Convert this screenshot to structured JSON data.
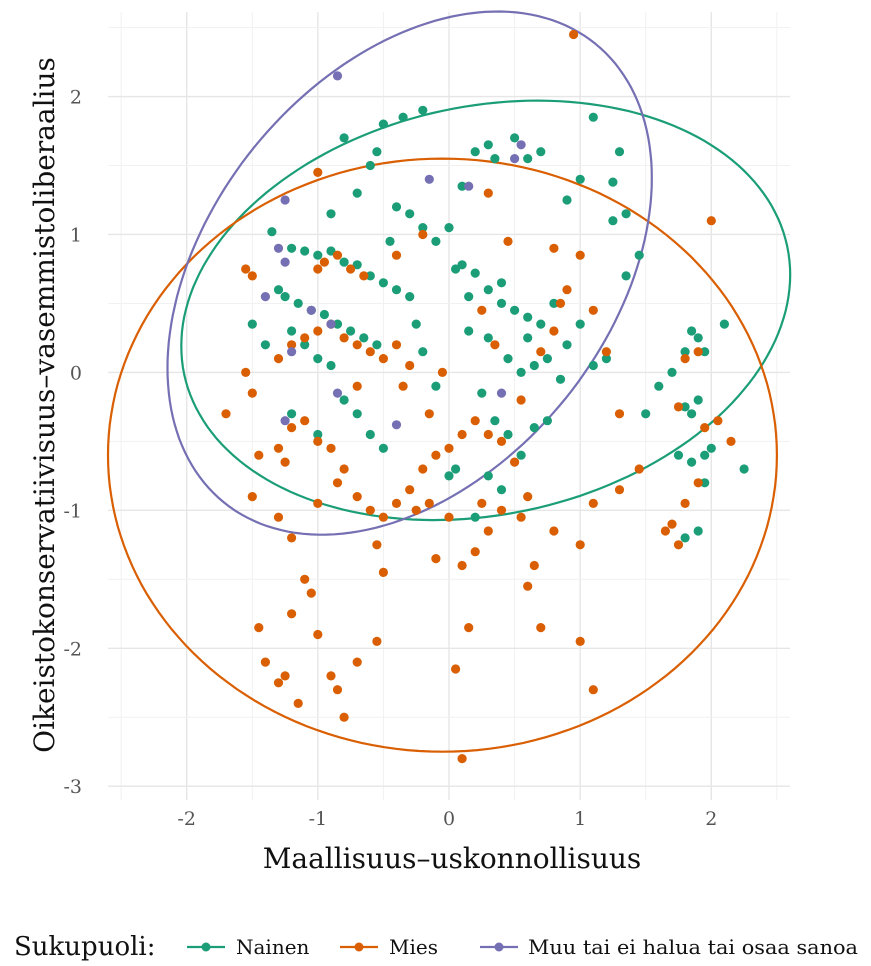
{
  "chart_data": {
    "type": "scatter",
    "xlabel": "Maallisuus–uskonnollisuus",
    "ylabel": "Oikeistokonservatiivisuus–vasemmistoliberaalius",
    "xlim": [
      -2.6,
      2.6
    ],
    "ylim": [
      -3.1,
      2.7
    ],
    "x_ticks": [
      -2,
      -1,
      0,
      1,
      2
    ],
    "x_tick_labels": [
      "-2",
      "-1",
      "0",
      "1",
      "2"
    ],
    "y_ticks": [
      -3,
      -2,
      -1,
      0,
      1,
      2
    ],
    "y_tick_labels": [
      "-3",
      "-2",
      "-1",
      "0",
      "1",
      "2"
    ],
    "grid": true,
    "legend_position": "bottom",
    "legend": {
      "title": "Sukupuoli:",
      "entries": [
        "Nainen",
        "Mies",
        "Muu tai ei halua tai osaa sanoa"
      ]
    },
    "series": [
      {
        "name": "Nainen",
        "color": "#1b9e77",
        "ellipse": {
          "cx": 0.28,
          "cy": 0.45,
          "rx": 2.35,
          "ry": 1.48,
          "angle_deg": 12
        },
        "points": [
          [
            -1.35,
            1.02
          ],
          [
            -1.2,
            0.9
          ],
          [
            -1.1,
            0.88
          ],
          [
            -1.0,
            0.85
          ],
          [
            -0.9,
            0.88
          ],
          [
            -0.8,
            0.8
          ],
          [
            -0.7,
            0.78
          ],
          [
            -0.6,
            0.7
          ],
          [
            -0.5,
            0.65
          ],
          [
            -0.4,
            0.6
          ],
          [
            -0.3,
            0.55
          ],
          [
            -1.3,
            0.6
          ],
          [
            -1.25,
            0.55
          ],
          [
            -1.15,
            0.5
          ],
          [
            -1.05,
            0.45
          ],
          [
            -0.95,
            0.42
          ],
          [
            -0.85,
            0.35
          ],
          [
            -0.75,
            0.3
          ],
          [
            -0.65,
            0.25
          ],
          [
            -0.55,
            0.2
          ],
          [
            -1.2,
            0.3
          ],
          [
            -1.1,
            0.2
          ],
          [
            -1.0,
            0.1
          ],
          [
            -0.9,
            0.05
          ],
          [
            -0.8,
            -0.2
          ],
          [
            -0.7,
            -0.3
          ],
          [
            -0.6,
            -0.45
          ],
          [
            -0.5,
            -0.55
          ],
          [
            -1.0,
            -0.45
          ],
          [
            -1.2,
            -0.3
          ],
          [
            -0.9,
            1.15
          ],
          [
            -0.7,
            1.3
          ],
          [
            -0.6,
            1.5
          ],
          [
            -0.55,
            1.6
          ],
          [
            -0.35,
            1.85
          ],
          [
            -0.2,
            1.9
          ],
          [
            -0.8,
            1.7
          ],
          [
            -0.5,
            1.8
          ],
          [
            -0.4,
            1.2
          ],
          [
            -0.3,
            1.15
          ],
          [
            -0.2,
            1.05
          ],
          [
            -0.1,
            0.95
          ],
          [
            0.0,
            1.05
          ],
          [
            0.1,
            1.35
          ],
          [
            0.2,
            1.6
          ],
          [
            0.3,
            1.65
          ],
          [
            0.35,
            1.55
          ],
          [
            0.5,
            1.7
          ],
          [
            0.6,
            1.55
          ],
          [
            0.7,
            1.6
          ],
          [
            0.9,
            1.25
          ],
          [
            1.0,
            1.4
          ],
          [
            1.1,
            1.85
          ],
          [
            1.3,
            1.6
          ],
          [
            1.25,
            1.38
          ],
          [
            1.35,
            1.15
          ],
          [
            1.25,
            1.1
          ],
          [
            0.05,
            0.75
          ],
          [
            0.1,
            0.78
          ],
          [
            0.2,
            0.72
          ],
          [
            0.3,
            0.6
          ],
          [
            0.4,
            0.5
          ],
          [
            0.5,
            0.45
          ],
          [
            0.6,
            0.4
          ],
          [
            0.7,
            0.35
          ],
          [
            0.8,
            0.5
          ],
          [
            0.9,
            0.2
          ],
          [
            1.0,
            0.35
          ],
          [
            1.1,
            0.05
          ],
          [
            1.2,
            0.1
          ],
          [
            1.35,
            0.7
          ],
          [
            0.15,
            0.3
          ],
          [
            0.3,
            0.25
          ],
          [
            0.45,
            0.1
          ],
          [
            0.55,
            0.0
          ],
          [
            0.65,
            0.05
          ],
          [
            0.75,
            0.1
          ],
          [
            0.85,
            -0.05
          ],
          [
            0.25,
            -0.15
          ],
          [
            0.35,
            -0.35
          ],
          [
            0.45,
            -0.45
          ],
          [
            0.55,
            -0.6
          ],
          [
            0.65,
            -0.4
          ],
          [
            0.75,
            -0.35
          ],
          [
            0.3,
            -0.75
          ],
          [
            0.4,
            -0.85
          ],
          [
            0.2,
            -1.05
          ],
          [
            0.0,
            -0.75
          ],
          [
            -0.1,
            -0.1
          ],
          [
            -0.2,
            0.15
          ],
          [
            0.05,
            -0.7
          ],
          [
            1.5,
            -0.3
          ],
          [
            1.6,
            -0.1
          ],
          [
            1.7,
            0.0
          ],
          [
            1.8,
            0.15
          ],
          [
            1.85,
            0.3
          ],
          [
            1.9,
            0.25
          ],
          [
            1.95,
            0.15
          ],
          [
            2.1,
            0.35
          ],
          [
            1.8,
            -0.25
          ],
          [
            1.85,
            -0.3
          ],
          [
            1.9,
            -0.2
          ],
          [
            1.75,
            -0.6
          ],
          [
            1.85,
            -0.65
          ],
          [
            1.95,
            -0.6
          ],
          [
            2.0,
            -0.55
          ],
          [
            2.25,
            -0.7
          ],
          [
            1.8,
            -1.2
          ],
          [
            1.9,
            -1.15
          ],
          [
            1.95,
            -0.8
          ],
          [
            -1.4,
            0.2
          ],
          [
            -1.5,
            0.35
          ],
          [
            0.4,
            0.65
          ],
          [
            0.6,
            0.25
          ],
          [
            -0.45,
            0.95
          ],
          [
            -0.25,
            0.35
          ],
          [
            0.15,
            0.55
          ],
          [
            1.45,
            0.85
          ]
        ]
      },
      {
        "name": "Mies",
        "color": "#d95f02",
        "ellipse": {
          "cx": -0.05,
          "cy": -0.6,
          "rx": 2.55,
          "ry": 2.15,
          "angle_deg": 0
        },
        "points": [
          [
            -1.7,
            -0.3
          ],
          [
            -1.55,
            0.0
          ],
          [
            -1.5,
            -0.15
          ],
          [
            -1.45,
            -0.6
          ],
          [
            -1.3,
            -0.55
          ],
          [
            -1.25,
            -0.65
          ],
          [
            -1.2,
            -0.4
          ],
          [
            -1.1,
            -0.35
          ],
          [
            -1.0,
            -0.5
          ],
          [
            -0.9,
            -0.55
          ],
          [
            -0.8,
            -0.7
          ],
          [
            -0.7,
            -0.9
          ],
          [
            -0.6,
            -1.0
          ],
          [
            -0.5,
            -1.05
          ],
          [
            -0.4,
            -0.95
          ],
          [
            -0.3,
            -0.85
          ],
          [
            -0.2,
            -0.7
          ],
          [
            -0.1,
            -0.6
          ],
          [
            0.0,
            -0.55
          ],
          [
            0.1,
            -0.45
          ],
          [
            0.2,
            -0.35
          ],
          [
            0.3,
            -0.45
          ],
          [
            0.4,
            -0.5
          ],
          [
            0.5,
            -0.65
          ],
          [
            0.55,
            -1.05
          ],
          [
            0.6,
            -0.9
          ],
          [
            -1.5,
            -0.9
          ],
          [
            -1.3,
            -1.05
          ],
          [
            -1.2,
            -1.2
          ],
          [
            -1.1,
            -1.5
          ],
          [
            -1.05,
            -1.6
          ],
          [
            -1.0,
            -1.9
          ],
          [
            -0.9,
            -2.2
          ],
          [
            -0.8,
            -2.5
          ],
          [
            -0.7,
            -2.1
          ],
          [
            -0.55,
            -1.95
          ],
          [
            -1.25,
            -2.2
          ],
          [
            -1.4,
            -2.1
          ],
          [
            -1.45,
            -1.85
          ],
          [
            -1.2,
            -1.75
          ],
          [
            -1.3,
            -2.25
          ],
          [
            -1.15,
            -2.4
          ],
          [
            -0.85,
            -2.3
          ],
          [
            -0.5,
            -1.45
          ],
          [
            -0.55,
            -1.25
          ],
          [
            0.05,
            -2.15
          ],
          [
            0.1,
            -1.4
          ],
          [
            0.15,
            -1.85
          ],
          [
            0.2,
            -1.3
          ],
          [
            0.3,
            -1.15
          ],
          [
            0.4,
            -1.0
          ],
          [
            0.6,
            -1.55
          ],
          [
            0.7,
            -1.85
          ],
          [
            0.65,
            -1.4
          ],
          [
            0.8,
            -1.15
          ],
          [
            0.1,
            -2.8
          ],
          [
            1.0,
            -1.95
          ],
          [
            1.1,
            -2.3
          ],
          [
            1.0,
            -1.25
          ],
          [
            1.1,
            -0.95
          ],
          [
            1.3,
            -0.85
          ],
          [
            1.45,
            -0.7
          ],
          [
            1.65,
            -1.15
          ],
          [
            1.7,
            -1.1
          ],
          [
            1.75,
            -1.25
          ],
          [
            1.8,
            -0.95
          ],
          [
            1.9,
            -0.8
          ],
          [
            1.95,
            -0.4
          ],
          [
            2.05,
            -0.35
          ],
          [
            2.15,
            -0.5
          ],
          [
            2.0,
            1.1
          ],
          [
            1.8,
            0.1
          ],
          [
            1.9,
            0.15
          ],
          [
            1.75,
            -0.25
          ],
          [
            0.95,
            2.45
          ],
          [
            1.0,
            0.85
          ],
          [
            0.9,
            0.6
          ],
          [
            0.8,
            0.3
          ],
          [
            1.1,
            0.45
          ],
          [
            1.2,
            0.15
          ],
          [
            1.3,
            -0.3
          ],
          [
            -1.55,
            0.75
          ],
          [
            -1.5,
            0.7
          ],
          [
            -1.3,
            0.1
          ],
          [
            -1.2,
            0.2
          ],
          [
            -1.1,
            0.25
          ],
          [
            -1.0,
            0.3
          ],
          [
            -0.9,
            0.35
          ],
          [
            -0.8,
            0.25
          ],
          [
            -0.7,
            0.2
          ],
          [
            -0.6,
            0.15
          ],
          [
            -0.5,
            0.1
          ],
          [
            -0.4,
            0.2
          ],
          [
            -0.3,
            0.05
          ],
          [
            -1.0,
            0.75
          ],
          [
            -0.95,
            0.8
          ],
          [
            -0.85,
            0.85
          ],
          [
            -0.75,
            0.75
          ],
          [
            -0.65,
            0.7
          ],
          [
            -0.4,
            0.85
          ],
          [
            -0.2,
            1.0
          ],
          [
            -1.0,
            1.45
          ],
          [
            0.3,
            1.3
          ],
          [
            0.45,
            0.95
          ],
          [
            0.8,
            0.9
          ],
          [
            0.85,
            0.5
          ],
          [
            0.7,
            0.15
          ],
          [
            0.55,
            -0.2
          ],
          [
            0.35,
            0.2
          ],
          [
            0.25,
            0.45
          ],
          [
            -0.05,
            0.0
          ],
          [
            -0.15,
            -0.3
          ],
          [
            -0.35,
            -0.1
          ],
          [
            -0.7,
            -0.1
          ],
          [
            -0.85,
            -0.8
          ],
          [
            -1.0,
            -0.95
          ],
          [
            -0.25,
            -1.0
          ],
          [
            0.0,
            -1.05
          ],
          [
            0.25,
            -0.95
          ],
          [
            -0.1,
            -1.35
          ],
          [
            -0.15,
            -0.95
          ]
        ]
      },
      {
        "name": "Muu tai ei halua tai osaa sanoa",
        "color": "#7570b3",
        "ellipse": {
          "cx": -0.3,
          "cy": 0.72,
          "rx": 2.25,
          "ry": 1.45,
          "angle_deg": 51
        },
        "points": [
          [
            -0.85,
            2.15
          ],
          [
            -1.25,
            1.25
          ],
          [
            -1.3,
            0.9
          ],
          [
            -1.25,
            0.8
          ],
          [
            -1.4,
            0.55
          ],
          [
            -1.2,
            0.15
          ],
          [
            -1.25,
            -0.35
          ],
          [
            -1.05,
            0.45
          ],
          [
            -0.85,
            -0.15
          ],
          [
            -0.4,
            -0.38
          ],
          [
            -0.15,
            1.4
          ],
          [
            0.15,
            1.35
          ],
          [
            0.5,
            1.55
          ],
          [
            0.55,
            1.65
          ],
          [
            0.4,
            -0.15
          ],
          [
            -0.9,
            0.35
          ]
        ]
      }
    ]
  }
}
